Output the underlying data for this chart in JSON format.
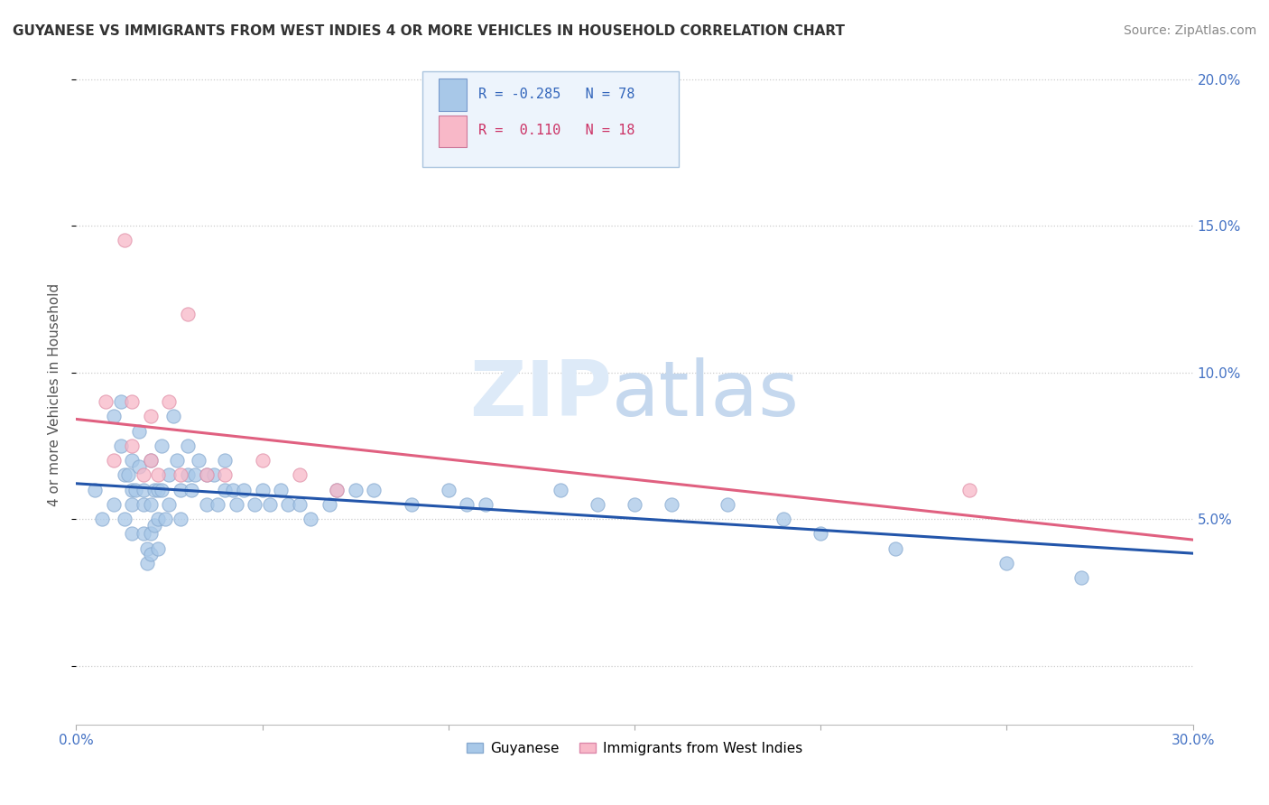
{
  "title": "GUYANESE VS IMMIGRANTS FROM WEST INDIES 4 OR MORE VEHICLES IN HOUSEHOLD CORRELATION CHART",
  "source": "Source: ZipAtlas.com",
  "ylabel": "4 or more Vehicles in Household",
  "xmin": 0.0,
  "xmax": 0.3,
  "ymin": -0.02,
  "ymax": 0.205,
  "series1_name": "Guyanese",
  "series1_color": "#a8c8e8",
  "series1_line_color": "#2255aa",
  "series1_R": "-0.285",
  "series1_N": "78",
  "series2_name": "Immigrants from West Indies",
  "series2_color": "#f8b8c8",
  "series2_line_color": "#e06080",
  "series2_R": "0.110",
  "series2_N": "18",
  "guyanese_x": [
    0.005,
    0.007,
    0.01,
    0.01,
    0.012,
    0.012,
    0.013,
    0.013,
    0.014,
    0.015,
    0.015,
    0.015,
    0.015,
    0.016,
    0.017,
    0.017,
    0.018,
    0.018,
    0.018,
    0.019,
    0.019,
    0.02,
    0.02,
    0.02,
    0.02,
    0.021,
    0.021,
    0.022,
    0.022,
    0.022,
    0.023,
    0.023,
    0.024,
    0.025,
    0.025,
    0.026,
    0.027,
    0.028,
    0.028,
    0.03,
    0.03,
    0.031,
    0.032,
    0.033,
    0.035,
    0.035,
    0.037,
    0.038,
    0.04,
    0.04,
    0.042,
    0.043,
    0.045,
    0.048,
    0.05,
    0.052,
    0.055,
    0.057,
    0.06,
    0.063,
    0.068,
    0.07,
    0.075,
    0.08,
    0.09,
    0.1,
    0.105,
    0.11,
    0.13,
    0.14,
    0.15,
    0.16,
    0.175,
    0.19,
    0.2,
    0.22,
    0.25,
    0.27
  ],
  "guyanese_y": [
    0.06,
    0.05,
    0.085,
    0.055,
    0.09,
    0.075,
    0.065,
    0.05,
    0.065,
    0.07,
    0.06,
    0.055,
    0.045,
    0.06,
    0.08,
    0.068,
    0.06,
    0.055,
    0.045,
    0.04,
    0.035,
    0.07,
    0.055,
    0.045,
    0.038,
    0.06,
    0.048,
    0.06,
    0.05,
    0.04,
    0.075,
    0.06,
    0.05,
    0.065,
    0.055,
    0.085,
    0.07,
    0.06,
    0.05,
    0.075,
    0.065,
    0.06,
    0.065,
    0.07,
    0.065,
    0.055,
    0.065,
    0.055,
    0.07,
    0.06,
    0.06,
    0.055,
    0.06,
    0.055,
    0.06,
    0.055,
    0.06,
    0.055,
    0.055,
    0.05,
    0.055,
    0.06,
    0.06,
    0.06,
    0.055,
    0.06,
    0.055,
    0.055,
    0.06,
    0.055,
    0.055,
    0.055,
    0.055,
    0.05,
    0.045,
    0.04,
    0.035,
    0.03
  ],
  "westindies_x": [
    0.008,
    0.01,
    0.013,
    0.015,
    0.015,
    0.018,
    0.02,
    0.02,
    0.022,
    0.025,
    0.028,
    0.03,
    0.035,
    0.04,
    0.05,
    0.06,
    0.07,
    0.24
  ],
  "westindies_y": [
    0.09,
    0.07,
    0.145,
    0.09,
    0.075,
    0.065,
    0.085,
    0.07,
    0.065,
    0.09,
    0.065,
    0.12,
    0.065,
    0.065,
    0.07,
    0.065,
    0.06,
    0.06
  ]
}
